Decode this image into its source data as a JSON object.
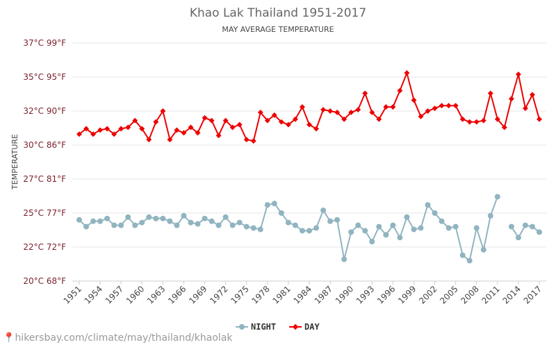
{
  "watermark": "hikersbay.com/climate/may/thailand/khaolak",
  "colors": {
    "night": "#90b4c0",
    "day": "#ee0000",
    "grid": "#e6e6e6",
    "tick_label": "#7a1f2b",
    "title": "#666666"
  },
  "chart_data": {
    "type": "line",
    "title": "Khao Lak Thailand 1951-2017",
    "subtitle": "MAY AVERAGE TEMPERATURE",
    "ylabel": "TEMPERATURE",
    "ylim": [
      20,
      37
    ],
    "yticks": [
      20,
      22.5,
      25,
      27.5,
      30,
      32.5,
      35,
      37.5
    ],
    "ytick_labels": [
      "20°C 68°F",
      "22°C 72°F",
      "25°C 77°F",
      "27°C 81°F",
      "30°C 86°F",
      "32°C 90°F",
      "35°C 95°F",
      "37°C 99°F"
    ],
    "x": [
      1951,
      1952,
      1953,
      1954,
      1955,
      1956,
      1957,
      1958,
      1959,
      1960,
      1961,
      1962,
      1963,
      1964,
      1965,
      1966,
      1967,
      1968,
      1969,
      1970,
      1971,
      1972,
      1973,
      1974,
      1975,
      1976,
      1977,
      1978,
      1979,
      1980,
      1981,
      1982,
      1983,
      1984,
      1985,
      1986,
      1987,
      1988,
      1989,
      1990,
      1991,
      1992,
      1993,
      1994,
      1995,
      1996,
      1997,
      1998,
      1999,
      2000,
      2001,
      2002,
      2003,
      2004,
      2005,
      2006,
      2007,
      2008,
      2009,
      2010,
      2011,
      2012,
      2013,
      2014,
      2015,
      2016,
      2017
    ],
    "xtick_labels": [
      "1951",
      "1954",
      "1957",
      "1960",
      "1963",
      "1966",
      "1969",
      "1972",
      "1975",
      "1978",
      "1981",
      "1984",
      "1987",
      "1990",
      "1993",
      "1996",
      "1999",
      "2002",
      "2005",
      "2008",
      "2011",
      "2014",
      "2017"
    ],
    "legend": "bottom-center",
    "grid": true,
    "series": [
      {
        "name": "NIGHT",
        "color": "#90b4c0",
        "values": [
          24.5,
          24.0,
          24.4,
          24.4,
          24.6,
          24.1,
          24.1,
          24.7,
          24.1,
          24.3,
          24.7,
          24.6,
          24.6,
          24.4,
          24.1,
          24.8,
          24.3,
          24.2,
          24.6,
          24.4,
          24.1,
          24.7,
          24.1,
          24.3,
          24.0,
          23.9,
          23.8,
          25.6,
          25.7,
          25.0,
          24.3,
          24.1,
          23.7,
          23.7,
          23.9,
          25.2,
          24.4,
          24.5,
          21.6,
          23.6,
          24.1,
          23.7,
          22.9,
          24.0,
          23.4,
          24.1,
          23.2,
          24.7,
          23.8,
          23.9,
          25.6,
          25.0,
          24.4,
          23.9,
          24.0,
          21.9,
          21.5,
          23.9,
          22.3,
          24.8,
          26.2,
          null,
          24.0,
          23.2,
          24.1,
          24.0,
          23.6
        ]
      },
      {
        "name": "DAY",
        "color": "#ee0000",
        "values": [
          30.8,
          31.2,
          30.8,
          31.1,
          31.2,
          30.8,
          31.2,
          31.3,
          31.8,
          31.2,
          30.4,
          31.7,
          32.5,
          30.4,
          31.1,
          30.9,
          31.3,
          30.9,
          32.0,
          31.8,
          30.7,
          31.8,
          31.3,
          31.5,
          30.4,
          30.3,
          32.4,
          31.8,
          32.2,
          31.7,
          31.5,
          31.9,
          32.8,
          31.5,
          31.2,
          32.6,
          32.5,
          32.4,
          31.9,
          32.4,
          32.6,
          33.8,
          32.4,
          31.9,
          32.8,
          32.8,
          34.0,
          35.3,
          33.3,
          32.1,
          32.5,
          32.7,
          32.9,
          32.9,
          32.9,
          31.9,
          31.7,
          31.7,
          31.8,
          33.8,
          31.9,
          31.3,
          33.4,
          35.2,
          32.7,
          33.7,
          31.9
        ]
      }
    ]
  }
}
